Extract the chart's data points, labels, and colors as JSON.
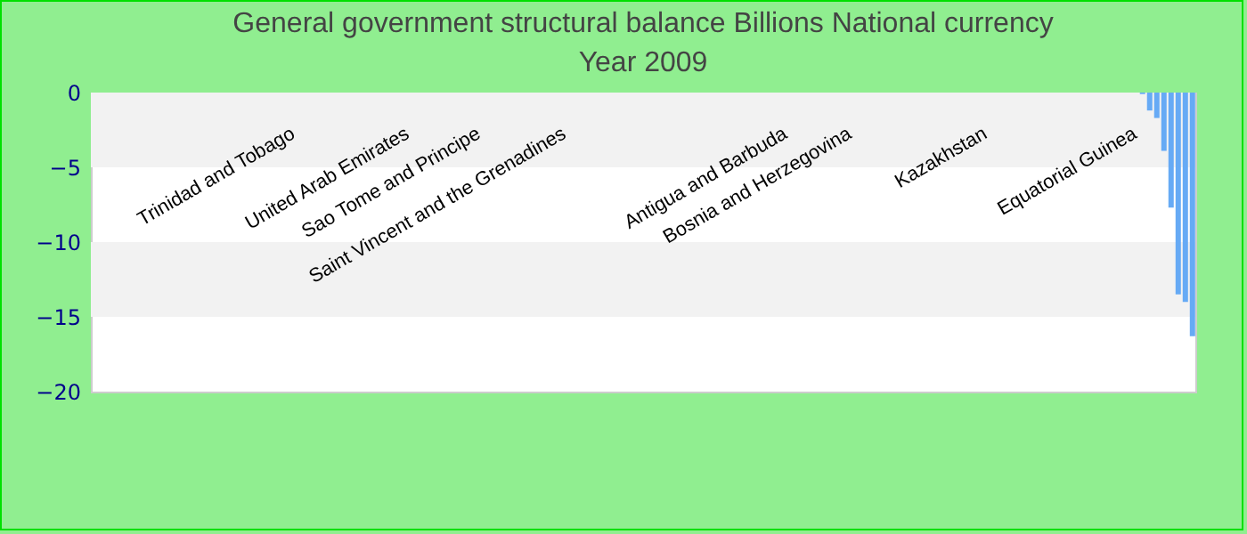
{
  "chart_data": {
    "type": "bar",
    "title": "General government structural balance Billions National currency",
    "subtitle": "Year 2009",
    "categories": [
      null,
      null,
      null,
      null,
      null,
      null,
      null,
      null,
      null,
      null,
      null,
      null,
      null,
      null,
      null,
      null,
      null,
      null,
      null,
      null,
      null,
      null,
      null,
      null,
      null,
      null,
      null,
      null,
      "Trinidad and Tobago",
      null,
      null,
      null,
      null,
      null,
      null,
      null,
      null,
      null,
      null,
      null,
      null,
      null,
      null,
      null,
      "United Arab Emirates",
      null,
      null,
      null,
      null,
      null,
      null,
      null,
      null,
      null,
      "Sao Tome and Principe",
      null,
      null,
      null,
      null,
      null,
      null,
      null,
      null,
      null,
      null,
      null,
      "Saint Vincent and the Grenadines",
      null,
      null,
      null,
      null,
      null,
      null,
      null,
      null,
      null,
      null,
      null,
      null,
      null,
      null,
      null,
      null,
      null,
      null,
      null,
      null,
      null,
      null,
      null,
      null,
      null,
      null,
      null,
      null,
      null,
      null,
      "Antigua and Barbuda",
      null,
      null,
      null,
      null,
      null,
      null,
      null,
      null,
      "Bosnia and Herzegovina",
      null,
      null,
      null,
      null,
      null,
      null,
      null,
      null,
      null,
      null,
      null,
      null,
      null,
      null,
      null,
      null,
      null,
      null,
      "Kazakhstan",
      null,
      null,
      null,
      null,
      null,
      null,
      null,
      null,
      null,
      null,
      null,
      null,
      null,
      null,
      null,
      null,
      null,
      null,
      null,
      null,
      "Equatorial Guinea",
      null,
      null,
      null,
      null,
      null,
      null,
      null,
      null
    ],
    "values": [
      0,
      0,
      0,
      0,
      0,
      0,
      0,
      0,
      0,
      0,
      0,
      0,
      0,
      0,
      0,
      0,
      0,
      0,
      0,
      0,
      0,
      0,
      0,
      0,
      0,
      0,
      0,
      0,
      0,
      0,
      0,
      0,
      0,
      0,
      0,
      0,
      0,
      0,
      0,
      0,
      0,
      0,
      0,
      0,
      0,
      0,
      0,
      0,
      0,
      0,
      0,
      0,
      0,
      0,
      0,
      0,
      0,
      0,
      0,
      0,
      0,
      0,
      0,
      0,
      0,
      0,
      0,
      0,
      0,
      0,
      0,
      0,
      0,
      0,
      0,
      0,
      0,
      0,
      0,
      0,
      0,
      0,
      0,
      0,
      0,
      0,
      0,
      0,
      0,
      0,
      0,
      0,
      0,
      0,
      0,
      0,
      0,
      0,
      0,
      0,
      0,
      0,
      0,
      0,
      0,
      0,
      0,
      0,
      0,
      0,
      0,
      0,
      0,
      0,
      0,
      0,
      0,
      0,
      0,
      0,
      0,
      0,
      0,
      0,
      0,
      0,
      0,
      0,
      0,
      0,
      0,
      0,
      0,
      0,
      0,
      0,
      0,
      0,
      0,
      0,
      0,
      0,
      0,
      0,
      0,
      0,
      0,
      -0.1,
      -1.2,
      -1.7,
      -3.9,
      -7.7,
      -13.5,
      -14,
      -16.3
    ],
    "color": "#66aaf5",
    "ylim": [
      -20,
      0
    ],
    "yticks": [
      0,
      -5,
      -10,
      -15,
      -20
    ]
  }
}
